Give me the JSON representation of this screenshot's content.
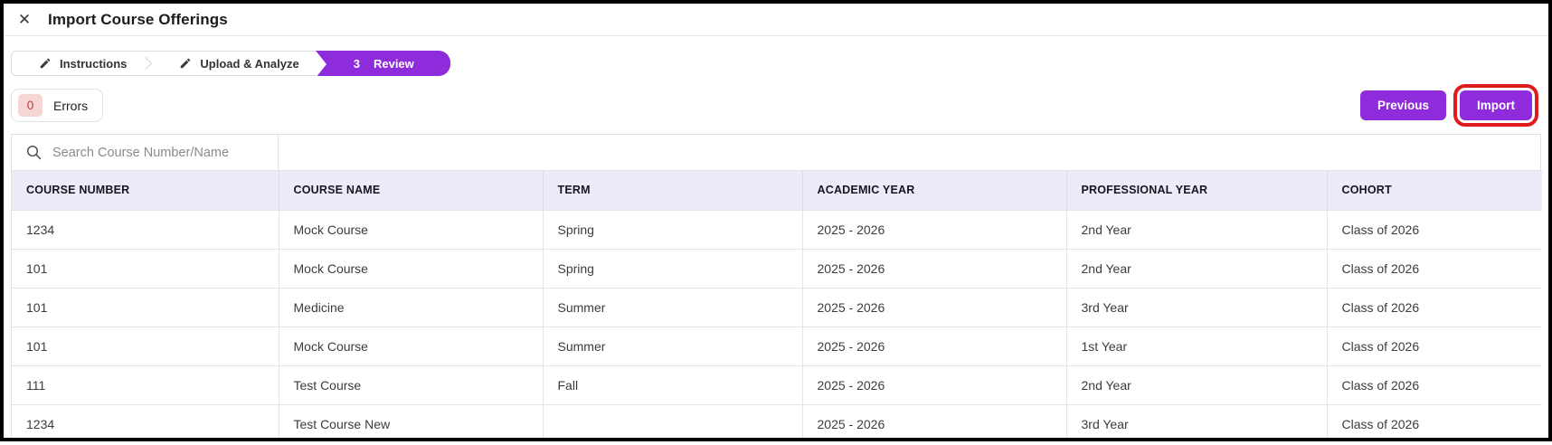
{
  "dialog": {
    "title": "Import Course Offerings",
    "close_icon": "close-x"
  },
  "stepper": {
    "steps": [
      {
        "label": "Instructions",
        "icon": "pencil-icon",
        "active": false
      },
      {
        "label": "Upload & Analyze",
        "icon": "pencil-icon",
        "active": false
      },
      {
        "number": "3",
        "label": "Review",
        "active": true
      }
    ]
  },
  "toolbar": {
    "errors_count": "0",
    "errors_label": "Errors",
    "previous_label": "Previous",
    "import_label": "Import"
  },
  "search": {
    "placeholder": "Search Course Number/Name",
    "value": "",
    "icon": "search-icon"
  },
  "table": {
    "columns": [
      "COURSE NUMBER",
      "COURSE NAME",
      "TERM",
      "ACADEMIC YEAR",
      "PROFESSIONAL YEAR",
      "COHORT"
    ],
    "rows": [
      [
        "1234",
        "Mock Course",
        "Spring",
        "2025 - 2026",
        "2nd Year",
        "Class of 2026"
      ],
      [
        "101",
        "Mock Course",
        "Spring",
        "2025 - 2026",
        "2nd Year",
        "Class of 2026"
      ],
      [
        "101",
        "Medicine",
        "Summer",
        "2025 - 2026",
        "3rd Year",
        "Class of 2026"
      ],
      [
        "101",
        "Mock Course",
        "Summer",
        "2025 - 2026",
        "1st Year",
        "Class of 2026"
      ],
      [
        "111",
        "Test Course",
        "Fall",
        "2025 - 2026",
        "2nd Year",
        "Class of 2026"
      ],
      [
        "1234",
        "Test Course New",
        "",
        "2025 - 2026",
        "3rd Year",
        "Class of 2026"
      ]
    ]
  },
  "colors": {
    "accent_purple": "#8e2bdb",
    "table_header_bg": "#edebf8",
    "error_badge_bg": "#f6d5d5",
    "error_badge_text": "#c03939",
    "annotation_highlight": "#e01b1b",
    "frame_border": "#000000"
  }
}
